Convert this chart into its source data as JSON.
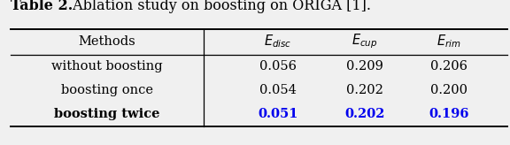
{
  "title_bold": "Table 2.",
  "title_normal": " Ablation study on boosting on ORIGA [1].",
  "col_headers": [
    "Methods",
    "$E_{disc}$",
    "$E_{cup}$",
    "$E_{rim}$"
  ],
  "rows": [
    [
      "without boosting",
      "0.056",
      "0.209",
      "0.206"
    ],
    [
      "boosting once",
      "0.054",
      "0.202",
      "0.200"
    ],
    [
      "boosting twice",
      "0.051",
      "0.202",
      "0.196"
    ]
  ],
  "row_bold": [
    false,
    false,
    true
  ],
  "row_colors": [
    [
      "black",
      "black",
      "black",
      "black"
    ],
    [
      "black",
      "black",
      "black",
      "black"
    ],
    [
      "black",
      "#0000EE",
      "#0000EE",
      "#0000EE"
    ]
  ],
  "bg_color": "#f0f0f0",
  "figsize": [
    5.76,
    1.64
  ],
  "dpi": 100
}
